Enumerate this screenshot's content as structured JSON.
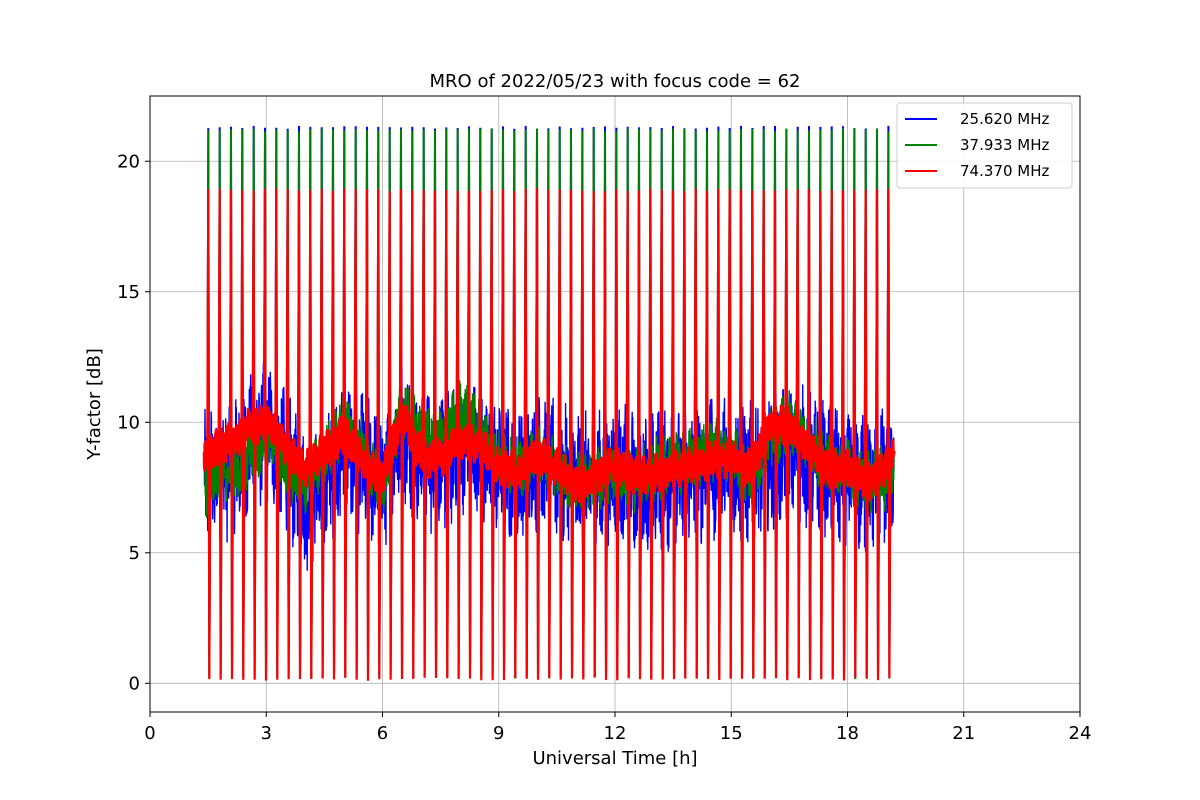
{
  "chart_data": {
    "type": "line",
    "title": "MRO of 2022/05/23 with focus code = 62",
    "xlabel": "Universal Time [h]",
    "ylabel": "Y-factor [dB]",
    "xlim": [
      0,
      24
    ],
    "ylim": [
      -1.1,
      22.5
    ],
    "xticks": [
      0,
      3,
      6,
      9,
      12,
      15,
      18,
      21,
      24
    ],
    "yticks": [
      0,
      5,
      10,
      15,
      20
    ],
    "grid": true,
    "legend_position": "top-right",
    "data_start_h": 1.4,
    "data_end_h": 19.2,
    "calibration_spike_count": 61,
    "series": [
      {
        "name": "25.620 MHz",
        "color": "#0000ff",
        "spike_peak": 21.3,
        "spike_floor": 0.2,
        "baseline": {
          "x": [
            1.4,
            2.0,
            2.5,
            3.0,
            3.5,
            4.0,
            4.5,
            5.0,
            5.5,
            6.0,
            6.5,
            7.0,
            7.5,
            8.0,
            8.5,
            9.0,
            9.5,
            10.0,
            10.5,
            11.0,
            11.5,
            12.0,
            12.5,
            13.0,
            13.5,
            14.0,
            14.5,
            15.0,
            15.5,
            16.0,
            16.5,
            17.0,
            17.5,
            18.0,
            18.5,
            19.0,
            19.2
          ],
          "y": [
            7.8,
            8.2,
            8.9,
            9.7,
            8.6,
            6.8,
            7.6,
            9.0,
            8.4,
            7.5,
            9.8,
            8.6,
            8.4,
            9.0,
            8.9,
            8.2,
            8.0,
            8.6,
            8.2,
            7.7,
            7.6,
            8.2,
            7.6,
            7.8,
            7.8,
            8.0,
            8.2,
            8.3,
            8.0,
            8.4,
            8.8,
            8.6,
            8.0,
            7.8,
            7.5,
            7.9,
            8.5
          ]
        },
        "noise_amplitude": 2.2
      },
      {
        "name": "37.933 MHz",
        "color": "#008000",
        "spike_peak": 21.2,
        "spike_floor": 0.15,
        "baseline": {
          "x": [
            1.4,
            2.0,
            2.5,
            3.0,
            3.5,
            4.0,
            4.5,
            5.0,
            5.5,
            6.0,
            6.5,
            7.0,
            7.5,
            8.0,
            8.5,
            9.0,
            9.5,
            10.0,
            10.5,
            11.0,
            11.5,
            12.0,
            12.5,
            13.0,
            13.5,
            14.0,
            14.5,
            15.0,
            15.5,
            16.0,
            16.5,
            17.0,
            17.5,
            18.0,
            18.5,
            19.0,
            19.2
          ],
          "y": [
            7.6,
            8.0,
            8.5,
            9.3,
            8.4,
            7.6,
            8.8,
            10.0,
            9.0,
            7.4,
            10.6,
            9.4,
            9.4,
            10.4,
            9.8,
            8.6,
            8.3,
            8.8,
            8.1,
            7.7,
            7.8,
            8.2,
            7.8,
            8.2,
            8.4,
            8.6,
            9.0,
            8.8,
            7.8,
            9.4,
            10.0,
            9.2,
            8.4,
            8.2,
            7.7,
            7.9,
            8.2
          ]
        },
        "noise_amplitude": 1.0
      },
      {
        "name": "74.370 MHz",
        "color": "#ff0000",
        "spike_peak": 18.9,
        "spike_floor": 0.1,
        "baseline": {
          "x": [
            1.4,
            2.0,
            2.5,
            3.0,
            3.5,
            4.0,
            4.5,
            5.0,
            5.5,
            6.0,
            6.5,
            7.0,
            7.5,
            8.0,
            8.5,
            9.0,
            9.5,
            10.0,
            10.5,
            11.0,
            11.5,
            12.0,
            12.5,
            13.0,
            13.5,
            14.0,
            14.5,
            15.0,
            15.5,
            16.0,
            16.5,
            17.0,
            17.5,
            18.0,
            18.5,
            19.0,
            19.2
          ],
          "y": [
            8.8,
            9.2,
            9.7,
            10.1,
            9.0,
            8.1,
            8.9,
            9.6,
            8.5,
            7.8,
            10.3,
            8.7,
            8.6,
            9.3,
            9.1,
            8.4,
            8.1,
            8.8,
            8.3,
            7.6,
            7.9,
            8.5,
            7.9,
            8.0,
            8.2,
            8.3,
            8.6,
            8.6,
            8.2,
            9.9,
            9.8,
            9.0,
            8.2,
            8.3,
            7.7,
            8.2,
            8.7
          ]
        },
        "noise_amplitude": 0.6
      }
    ]
  }
}
